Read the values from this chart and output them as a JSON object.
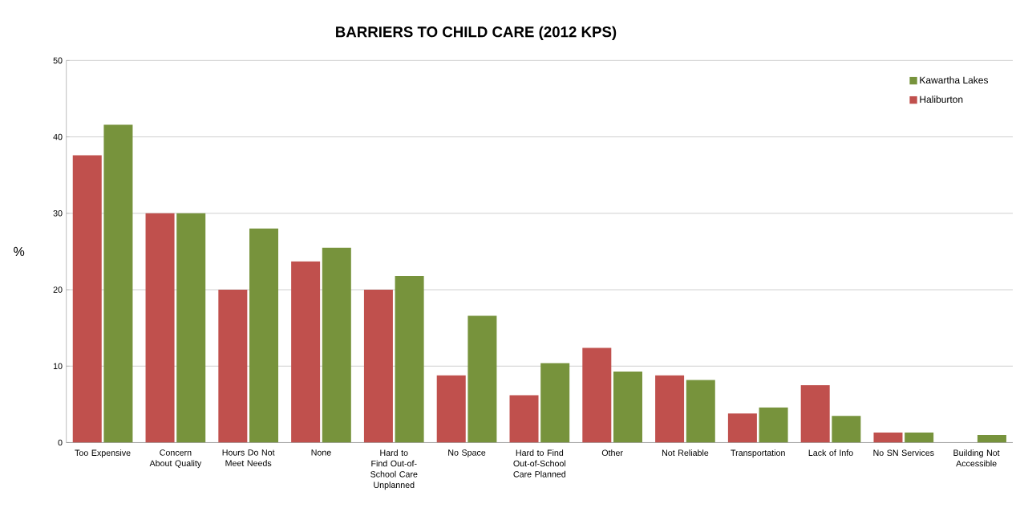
{
  "chart_data": {
    "type": "bar",
    "title": "BARRIERS TO CHILD CARE (2012 KPS)",
    "ylabel": "%",
    "categories": [
      "Too Expensive",
      "Concern About Quality",
      "Hours Do Not Meet Needs",
      "None",
      "Hard to Find Out-of-School Care Unplanned",
      "No Space",
      "Hard to Find Out-of-School Care Planned",
      "Other",
      "Not Reliable",
      "Transportation",
      "Lack of Info",
      "No SN Services",
      "Building Not Accessible"
    ],
    "series": [
      {
        "name": "Haliburton",
        "color": "#c0504d",
        "values": [
          37.6,
          30,
          20,
          23.7,
          20,
          8.8,
          6.2,
          12.4,
          8.8,
          3.8,
          7.5,
          1.3,
          0
        ]
      },
      {
        "name": "Kawartha Lakes",
        "color": "#77933c",
        "values": [
          41.6,
          30,
          28,
          25.5,
          21.8,
          16.6,
          10.4,
          9.3,
          8.2,
          4.6,
          3.5,
          1.3,
          1.0
        ]
      }
    ],
    "ylim": [
      0,
      50
    ],
    "yticks": [
      0,
      10,
      20,
      30,
      40,
      50
    ],
    "grid": "y",
    "legend": "top right"
  }
}
